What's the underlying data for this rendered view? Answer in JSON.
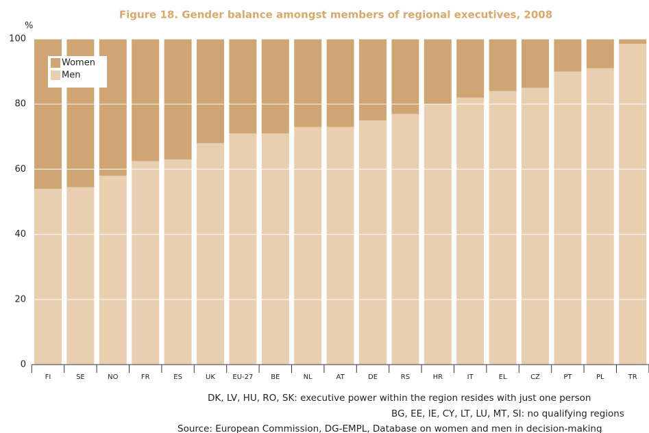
{
  "chart_data": {
    "type": "stacked_bar",
    "title": "Figure 18. Gender balance amongst members of regional executives, 2008",
    "y_axis_label": "%",
    "categories": [
      "FI",
      "SE",
      "NO",
      "FR",
      "ES",
      "UK",
      "EU-27",
      "BE",
      "NL",
      "AT",
      "DE",
      "RS",
      "HR",
      "IT",
      "EL",
      "CZ",
      "PT",
      "PL",
      "TR"
    ],
    "series": [
      {
        "name": "Men",
        "color": "#e8cfb0",
        "values": [
          54,
          54.5,
          58,
          62.5,
          63,
          68,
          71,
          71,
          73,
          73,
          75,
          77,
          80,
          82,
          84,
          85,
          90,
          91,
          98.5
        ]
      },
      {
        "name": "Women",
        "color": "#cfa673",
        "values": [
          46,
          45.5,
          42,
          37.5,
          37,
          32,
          29,
          29,
          27,
          27,
          25,
          23,
          20,
          18,
          16,
          15,
          10,
          9,
          1.5
        ]
      }
    ],
    "ylim": [
      0,
      100
    ],
    "yticks": [
      0,
      20,
      40,
      60,
      80,
      100
    ],
    "grid": true,
    "legend": "top-left",
    "notes": [
      "DK, LV, HU, RO, SK: executive power within the region resides with just one person",
      "BG, EE, IE, CY, LT, LU, MT, SI: no qualifying regions",
      "Source: European Commission, DG-EMPL, Database on women and men in decision-making"
    ]
  }
}
